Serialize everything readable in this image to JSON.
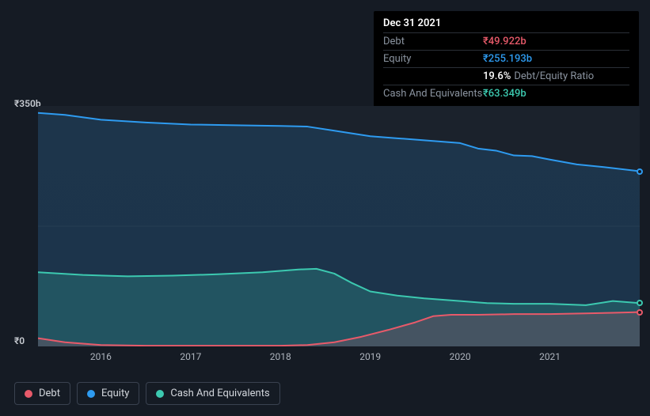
{
  "tooltip": {
    "title": "Dec 31 2021",
    "rows": [
      {
        "label": "Debt",
        "value": "₹49.922b",
        "color": "#e85a6a"
      },
      {
        "label": "Equity",
        "value": "₹255.193b",
        "color": "#2e9bf0"
      },
      {
        "label": "",
        "value": "19.6%",
        "suffix": "Debt/Equity Ratio",
        "color": "#ffffff"
      },
      {
        "label": "Cash And Equivalents",
        "value": "₹63.349b",
        "color": "#3cc9b0"
      }
    ]
  },
  "chart": {
    "type": "area",
    "background_color": "#151b24",
    "plot_background": "#1a212b",
    "ylim": [
      0,
      350
    ],
    "y_ticks": [
      {
        "v": 350,
        "label": "₹350b"
      },
      {
        "v": 0,
        "label": "₹0"
      }
    ],
    "x_range": [
      2015.3,
      2022.0
    ],
    "x_ticks": [
      2016,
      2017,
      2018,
      2019,
      2020,
      2021
    ],
    "grid_color": "#242b35",
    "series": [
      {
        "name": "Equity",
        "color": "#2e9bf0",
        "fill": "rgba(46,155,240,0.16)",
        "line_width": 2,
        "points": [
          [
            2015.3,
            340
          ],
          [
            2015.6,
            337
          ],
          [
            2016.0,
            330
          ],
          [
            2016.5,
            326
          ],
          [
            2017.0,
            323
          ],
          [
            2017.5,
            322
          ],
          [
            2018.0,
            321
          ],
          [
            2018.3,
            320
          ],
          [
            2018.6,
            314
          ],
          [
            2019.0,
            306
          ],
          [
            2019.3,
            303
          ],
          [
            2019.6,
            300
          ],
          [
            2020.0,
            296
          ],
          [
            2020.2,
            288
          ],
          [
            2020.4,
            285
          ],
          [
            2020.6,
            278
          ],
          [
            2020.8,
            277
          ],
          [
            2021.0,
            272
          ],
          [
            2021.3,
            265
          ],
          [
            2021.6,
            261
          ],
          [
            2022.0,
            255
          ]
        ]
      },
      {
        "name": "Cash And Equivalents",
        "color": "#3cc9b0",
        "fill": "rgba(60,201,176,0.22)",
        "line_width": 2,
        "points": [
          [
            2015.3,
            108
          ],
          [
            2015.8,
            104
          ],
          [
            2016.3,
            102
          ],
          [
            2016.8,
            103
          ],
          [
            2017.3,
            105
          ],
          [
            2017.8,
            108
          ],
          [
            2018.2,
            112
          ],
          [
            2018.4,
            113
          ],
          [
            2018.6,
            106
          ],
          [
            2018.8,
            92
          ],
          [
            2019.0,
            80
          ],
          [
            2019.3,
            74
          ],
          [
            2019.6,
            70
          ],
          [
            2020.0,
            66
          ],
          [
            2020.3,
            63
          ],
          [
            2020.6,
            62
          ],
          [
            2021.0,
            62
          ],
          [
            2021.4,
            60
          ],
          [
            2021.7,
            66
          ],
          [
            2022.0,
            63
          ]
        ]
      },
      {
        "name": "Debt",
        "color": "#e85a6a",
        "fill": "rgba(232,90,106,0.18)",
        "line_width": 2,
        "points": [
          [
            2015.3,
            12
          ],
          [
            2015.6,
            6
          ],
          [
            2016.0,
            2
          ],
          [
            2016.5,
            1
          ],
          [
            2017.0,
            1
          ],
          [
            2017.5,
            1
          ],
          [
            2018.0,
            1
          ],
          [
            2018.3,
            2
          ],
          [
            2018.6,
            6
          ],
          [
            2018.9,
            14
          ],
          [
            2019.2,
            24
          ],
          [
            2019.5,
            35
          ],
          [
            2019.7,
            44
          ],
          [
            2019.9,
            46
          ],
          [
            2020.2,
            46
          ],
          [
            2020.6,
            47
          ],
          [
            2021.0,
            47
          ],
          [
            2021.4,
            48
          ],
          [
            2021.7,
            49
          ],
          [
            2022.0,
            50
          ]
        ]
      }
    ],
    "end_markers": [
      {
        "series": "Equity",
        "color": "#2e9bf0"
      },
      {
        "series": "Cash And Equivalents",
        "color": "#3cc9b0"
      },
      {
        "series": "Debt",
        "color": "#e85a6a"
      }
    ]
  },
  "legend": [
    {
      "label": "Debt",
      "color": "#e85a6a"
    },
    {
      "label": "Equity",
      "color": "#2e9bf0"
    },
    {
      "label": "Cash And Equivalents",
      "color": "#3cc9b0"
    }
  ]
}
